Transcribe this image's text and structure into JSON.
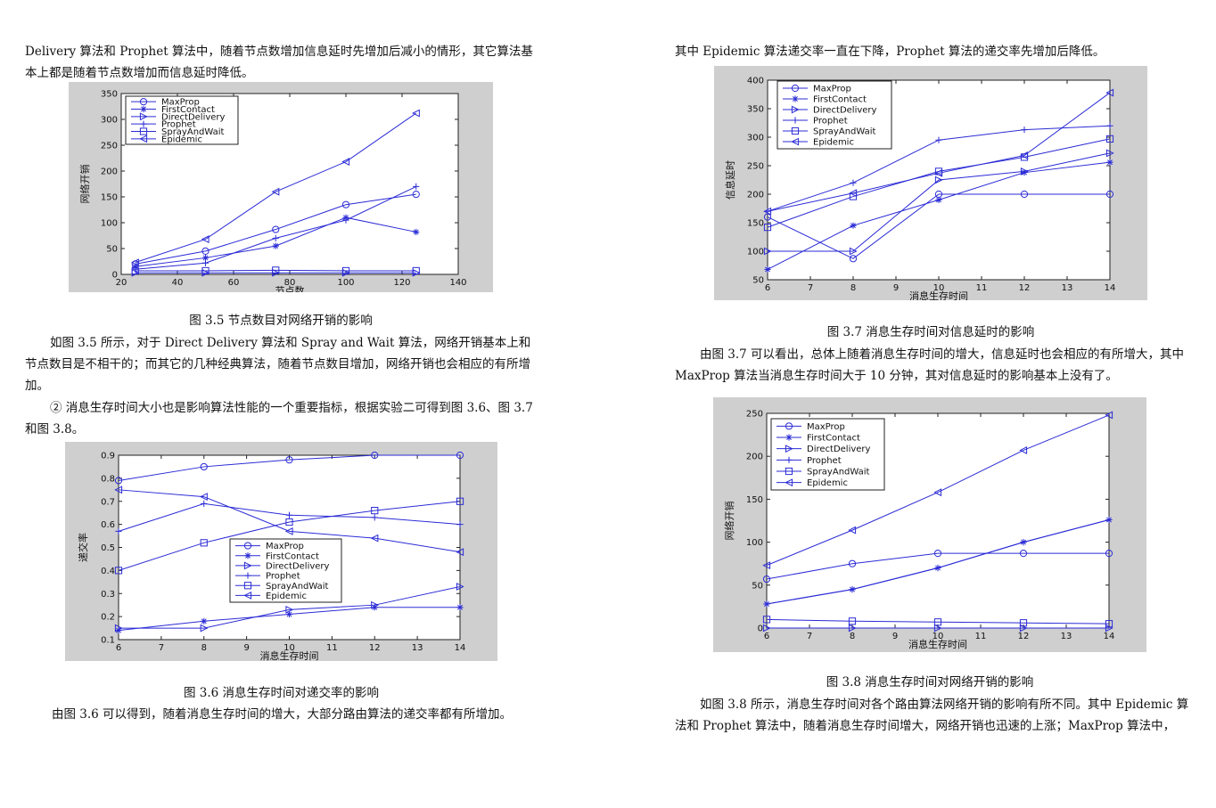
{
  "left": {
    "p1": "Delivery 算法和 Prophet 算法中，随着节点数增加信息延时先增加后减小的情形，其它算法基本上都是随着节点数增加而信息延时降低。",
    "cap35": "图 3.5 节点数目对网络开销的影响",
    "p2": "如图 3.5 所示，对于 Direct Delivery 算法和 Spray and Wait 算法，网络开销基本上和节点数目是不相干的；而其它的几种经典算法，随着节点数目增加，网络开销也会相应的有所增加。",
    "p3": "② 消息生存时间大小也是影响算法性能的一个重要指标，根据实验二可得到图 3.6、图 3.7 和图 3.8。",
    "cap36": "图 3.6 消息生存时间对递交率的影响",
    "p4": "由图 3.6 可以得到，随着消息生存时间的增大，大部分路由算法的递交率都有所增加。"
  },
  "right": {
    "p1": "其中 Epidemic 算法递交率一直在下降，Prophet 算法的递交率先增加后降低。",
    "cap37": "图 3.7 消息生存时间对信息延时的影响",
    "p2": "由图 3.7 可以看出，总体上随着消息生存时间的增大，信息延时也会相应的有所增大，其中 MaxProp 算法当消息生存时间大于 10 分钟，其对信息延时的影响基本上没有了。",
    "cap38": "图 3.8 消息生存时间对网络开销的影响",
    "p3": "如图 3.8 所示，消息生存时间对各个路由算法网络开销的影响有所不同。其中 Epidemic 算法和 Prophet 算法中，随着消息生存时间增大，网络开销也迅速的上涨；MaxProp 算法中，"
  },
  "colors": {
    "line": "#2b2bd6",
    "figure_bg": "#cfcfcf"
  },
  "chart_data": [
    {
      "id": "fig35",
      "type": "line",
      "xlabel": "节点数",
      "ylabel": "网络开销",
      "xlim": [
        20,
        140
      ],
      "ylim": [
        0,
        350
      ],
      "xticks": [
        20,
        40,
        60,
        80,
        100,
        120,
        140
      ],
      "yticks": [
        0,
        50,
        100,
        150,
        200,
        250,
        300,
        350
      ],
      "legend": "top-left",
      "x": [
        25,
        50,
        75,
        100,
        125
      ],
      "series": [
        {
          "name": "MaxProp",
          "marker": "circle",
          "values": [
            20,
            45,
            87,
            135,
            155
          ]
        },
        {
          "name": "FirstContact",
          "marker": "star",
          "values": [
            15,
            32,
            55,
            110,
            82
          ]
        },
        {
          "name": "DirectDelivery",
          "marker": "tri-right",
          "values": [
            3,
            3,
            3,
            3,
            3
          ]
        },
        {
          "name": "Prophet",
          "marker": "plus",
          "values": [
            10,
            22,
            70,
            105,
            170
          ]
        },
        {
          "name": "SprayAndWait",
          "marker": "square",
          "values": [
            7,
            7,
            8,
            7,
            7
          ]
        },
        {
          "name": "Epidemic",
          "marker": "tri-left",
          "values": [
            23,
            68,
            160,
            218,
            312
          ]
        }
      ]
    },
    {
      "id": "fig36",
      "type": "line",
      "xlabel": "消息生存时间",
      "ylabel": "递交率",
      "xlim": [
        6,
        14
      ],
      "ylim": [
        0.1,
        0.9
      ],
      "xticks": [
        6,
        7,
        8,
        9,
        10,
        11,
        12,
        13,
        14
      ],
      "yticks": [
        0.1,
        0.2,
        0.3,
        0.4,
        0.5,
        0.6,
        0.7,
        0.8,
        0.9
      ],
      "legend": "center-right",
      "x": [
        6,
        8,
        10,
        12,
        14
      ],
      "series": [
        {
          "name": "MaxProp",
          "marker": "circle",
          "values": [
            0.79,
            0.85,
            0.88,
            0.9,
            0.9
          ]
        },
        {
          "name": "FirstContact",
          "marker": "star",
          "values": [
            0.14,
            0.18,
            0.21,
            0.24,
            0.24
          ]
        },
        {
          "name": "DirectDelivery",
          "marker": "tri-right",
          "values": [
            0.15,
            0.15,
            0.23,
            0.25,
            0.33
          ]
        },
        {
          "name": "Prophet",
          "marker": "plus",
          "values": [
            0.57,
            0.69,
            0.64,
            0.63,
            0.6
          ]
        },
        {
          "name": "SprayAndWait",
          "marker": "square",
          "values": [
            0.4,
            0.52,
            0.61,
            0.66,
            0.7
          ]
        },
        {
          "name": "Epidemic",
          "marker": "tri-left",
          "values": [
            0.75,
            0.72,
            0.57,
            0.54,
            0.48
          ]
        }
      ]
    },
    {
      "id": "fig37",
      "type": "line",
      "xlabel": "消息生存时间",
      "ylabel": "信息延时",
      "xlim": [
        6,
        14
      ],
      "ylim": [
        50,
        400
      ],
      "xticks": [
        6,
        7,
        8,
        9,
        10,
        11,
        12,
        13,
        14
      ],
      "yticks": [
        50,
        100,
        150,
        200,
        250,
        300,
        350,
        400
      ],
      "legend": "top-left",
      "x": [
        6,
        8,
        10,
        12,
        14
      ],
      "series": [
        {
          "name": "MaxProp",
          "marker": "circle",
          "values": [
            160,
            87,
            200,
            200,
            200
          ]
        },
        {
          "name": "FirstContact",
          "marker": "star",
          "values": [
            68,
            145,
            190,
            238,
            256
          ]
        },
        {
          "name": "DirectDelivery",
          "marker": "tri-right",
          "values": [
            100,
            100,
            225,
            240,
            272
          ]
        },
        {
          "name": "Prophet",
          "marker": "plus",
          "values": [
            170,
            220,
            295,
            313,
            320
          ]
        },
        {
          "name": "SprayAndWait",
          "marker": "square",
          "values": [
            142,
            196,
            240,
            265,
            297
          ]
        },
        {
          "name": "Epidemic",
          "marker": "tri-left",
          "values": [
            170,
            202,
            237,
            268,
            378
          ]
        }
      ]
    },
    {
      "id": "fig38",
      "type": "line",
      "xlabel": "消息生存时间",
      "ylabel": "网络开销",
      "xlim": [
        6,
        14
      ],
      "ylim": [
        0,
        250
      ],
      "xticks": [
        6,
        7,
        8,
        9,
        10,
        11,
        12,
        13,
        14
      ],
      "yticks": [
        0,
        50,
        100,
        150,
        200,
        250
      ],
      "legend": "top-left",
      "x": [
        6,
        8,
        10,
        12,
        14
      ],
      "series": [
        {
          "name": "MaxProp",
          "marker": "circle",
          "values": [
            57,
            75,
            87,
            87,
            87
          ]
        },
        {
          "name": "FirstContact",
          "marker": "star",
          "values": [
            28,
            45,
            70,
            100,
            126
          ]
        },
        {
          "name": "DirectDelivery",
          "marker": "tri-right",
          "values": [
            0,
            0,
            0,
            0,
            0
          ]
        },
        {
          "name": "Prophet",
          "marker": "plus",
          "values": [
            28,
            45,
            70,
            100,
            126
          ]
        },
        {
          "name": "SprayAndWait",
          "marker": "square",
          "values": [
            10,
            8,
            7,
            6,
            5
          ]
        },
        {
          "name": "Epidemic",
          "marker": "tri-left",
          "values": [
            73,
            114,
            158,
            207,
            248
          ]
        }
      ]
    }
  ]
}
